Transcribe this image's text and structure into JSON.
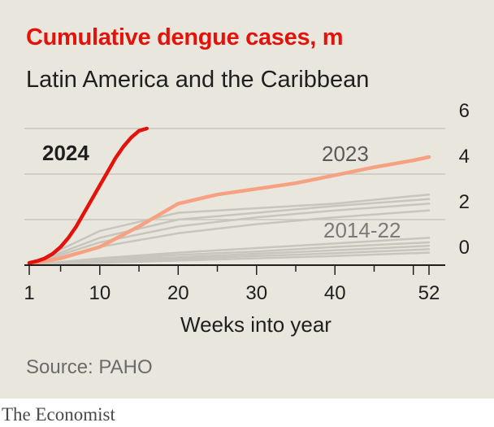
{
  "header": {
    "title": "Cumulative dengue cases, m",
    "subtitle": "Latin America and the Caribbean"
  },
  "footer": {
    "source": "Source: PAHO",
    "brand": "The Economist"
  },
  "colors": {
    "background": "#e9e7dd",
    "title": "#e3120b",
    "series_2024": "#e3120b",
    "series_2023": "#f7a183",
    "series_2014_22": "#c7c5bc",
    "gridline": "#c9c7bd",
    "axis": "#1f1f1f"
  },
  "chart_data": {
    "type": "line",
    "title": "Cumulative dengue cases, m",
    "subtitle": "Latin America and the Caribbean",
    "xlabel": "Weeks into year",
    "ylabel": "",
    "xlim": [
      1,
      52
    ],
    "ylim": [
      0,
      6
    ],
    "x_ticks": [
      1,
      10,
      20,
      30,
      40,
      52
    ],
    "y_ticks": [
      0,
      2,
      4,
      6
    ],
    "y_axis_side": "right",
    "grid": "horizontal",
    "legend": "none (direct labels)",
    "labels": {
      "y2024": "2024",
      "y2023": "2023",
      "range": "2014-22"
    },
    "series": [
      {
        "name": "2024",
        "x": [
          1,
          2,
          3,
          4,
          5,
          6,
          7,
          8,
          9,
          10,
          11,
          12,
          13,
          14,
          15,
          16
        ],
        "y": [
          0.1,
          0.18,
          0.3,
          0.5,
          0.8,
          1.2,
          1.7,
          2.3,
          2.9,
          3.5,
          4.1,
          4.7,
          5.2,
          5.6,
          5.9,
          6.0
        ]
      },
      {
        "name": "2023",
        "x": [
          1,
          5,
          10,
          15,
          20,
          25,
          30,
          35,
          40,
          45,
          50,
          52
        ],
        "y": [
          0.05,
          0.3,
          0.8,
          1.7,
          2.7,
          3.1,
          3.35,
          3.6,
          3.95,
          4.3,
          4.6,
          4.75
        ]
      },
      {
        "name": "2014-22",
        "years": [
          {
            "x": [
              1,
              10,
              20,
              30,
              40,
              52
            ],
            "y": [
              0.03,
              1.5,
              2.3,
              2.5,
              2.7,
              3.1
            ]
          },
          {
            "x": [
              1,
              10,
              20,
              30,
              40,
              52
            ],
            "y": [
              0.03,
              1.2,
              2.0,
              2.3,
              2.6,
              2.9
            ]
          },
          {
            "x": [
              1,
              10,
              20,
              30,
              40,
              52
            ],
            "y": [
              0.02,
              1.0,
              1.7,
              2.1,
              2.4,
              2.7
            ]
          },
          {
            "x": [
              1,
              10,
              20,
              30,
              40,
              52
            ],
            "y": [
              0.02,
              0.8,
              1.4,
              1.8,
              2.1,
              2.4
            ]
          },
          {
            "x": [
              1,
              10,
              20,
              30,
              40,
              52
            ],
            "y": [
              0.01,
              0.3,
              0.55,
              0.75,
              0.95,
              1.2
            ]
          },
          {
            "x": [
              1,
              10,
              20,
              30,
              40,
              52
            ],
            "y": [
              0.01,
              0.25,
              0.45,
              0.6,
              0.8,
              1.0
            ]
          },
          {
            "x": [
              1,
              10,
              20,
              30,
              40,
              52
            ],
            "y": [
              0.01,
              0.2,
              0.35,
              0.5,
              0.65,
              0.85
            ]
          },
          {
            "x": [
              1,
              10,
              20,
              30,
              40,
              52
            ],
            "y": [
              0.01,
              0.15,
              0.28,
              0.4,
              0.52,
              0.7
            ]
          },
          {
            "x": [
              1,
              10,
              20,
              30,
              40,
              52
            ],
            "y": [
              0.005,
              0.1,
              0.2,
              0.3,
              0.4,
              0.55
            ]
          }
        ]
      }
    ]
  }
}
